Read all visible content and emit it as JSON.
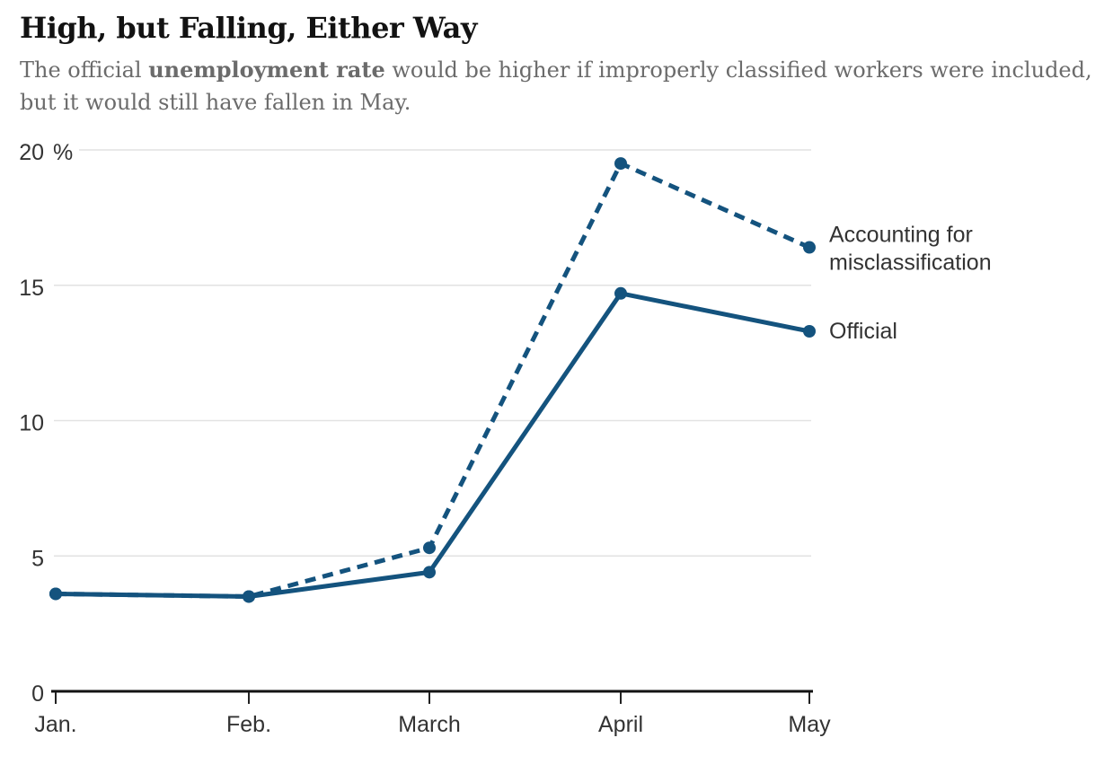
{
  "header": {
    "title": "High, but Falling, Either Way",
    "subtitle": {
      "line1_pre": "The official ",
      "line1_bold": "unemployment rate",
      "line1_post": " would be higher if improperly classified workers were included,",
      "line2": "but it would still have fallen in May."
    }
  },
  "chart_data": {
    "type": "line",
    "categories": [
      "Jan.",
      "Feb.",
      "March",
      "April",
      "May"
    ],
    "series": [
      {
        "name": "Accounting for misclassification",
        "style": "dashed",
        "values": [
          3.6,
          3.5,
          5.3,
          19.5,
          16.4
        ]
      },
      {
        "name": "Official",
        "style": "solid",
        "values": [
          3.6,
          3.5,
          4.4,
          14.7,
          13.3
        ]
      }
    ],
    "yticks": [
      0,
      5,
      10,
      15,
      20
    ],
    "ylim": [
      0,
      20
    ],
    "y_unit": "%",
    "grid": "horizontal-only",
    "legend_position": "right-of-last-point",
    "legend": {
      "series1_line1": "Accounting for",
      "series1_line2": "misclassification",
      "series2": "Official"
    },
    "line_color": "#14537e",
    "grid_color": "#e2e2e2",
    "axis_color": "#121212",
    "label_color": "#333333"
  }
}
